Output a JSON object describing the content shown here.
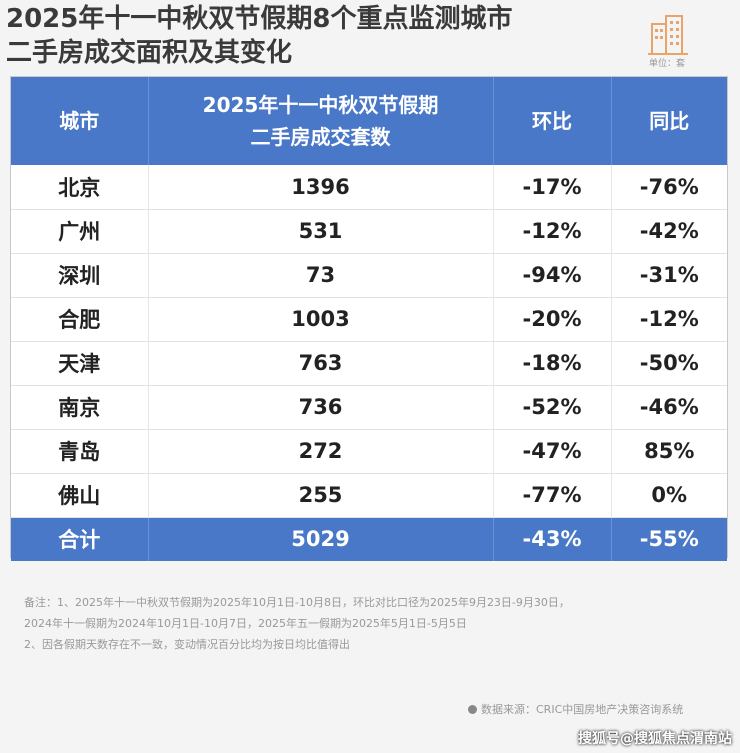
{
  "title": {
    "line1": "2025年十一中秋双节假期8个重点监测城市",
    "line2": "二手房成交面积及其变化"
  },
  "unit_label": "单位：套",
  "table": {
    "headers": {
      "city": "城市",
      "count_line1": "2025年十一中秋双节假期",
      "count_line2": "二手房成交套数",
      "mom": "环比",
      "yoy": "同比"
    },
    "rows": [
      {
        "city": "北京",
        "count": "1396",
        "mom": "-17%",
        "yoy": "-76%"
      },
      {
        "city": "广州",
        "count": "531",
        "mom": "-12%",
        "yoy": "-42%"
      },
      {
        "city": "深圳",
        "count": "73",
        "mom": "-94%",
        "yoy": "-31%"
      },
      {
        "city": "合肥",
        "count": "1003",
        "mom": "-20%",
        "yoy": "-12%"
      },
      {
        "city": "天津",
        "count": "763",
        "mom": "-18%",
        "yoy": "-50%"
      },
      {
        "city": "南京",
        "count": "736",
        "mom": "-52%",
        "yoy": "-46%"
      },
      {
        "city": "青岛",
        "count": "272",
        "mom": "-47%",
        "yoy": "85%"
      },
      {
        "city": "佛山",
        "count": "255",
        "mom": "-77%",
        "yoy": "0%"
      }
    ],
    "total": {
      "city": "合计",
      "count": "5029",
      "mom": "-43%",
      "yoy": "-55%"
    }
  },
  "notes": {
    "line1": "备注：1、2025年十一中秋双节假期为2025年10月1日-10月8日，环比对比口径为2025年9月23日-9月30日，",
    "line2": "2024年十一假期为2024年10月1日-10月7日，2025年五一假期为2025年5月1日-5月5日",
    "line3": "2、因各假期天数存在不一致，变动情况百分比均为按日均比值得出"
  },
  "source": "数据来源：CRIC中国房地产决策咨询系统",
  "watermark": "搜狐号@搜狐焦点渭南站",
  "colors": {
    "header_blue": "#4a78c8",
    "logo_orange": "#e8a46a"
  }
}
